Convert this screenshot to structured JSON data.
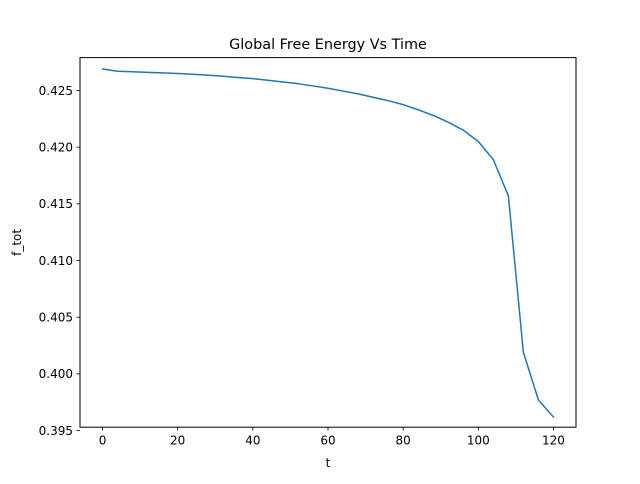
{
  "chart_data": {
    "type": "line",
    "title": "Global Free Energy Vs Time",
    "xlabel": "t",
    "ylabel": "f_tot",
    "xlim": [
      -6,
      126
    ],
    "ylim": [
      0.3953,
      0.4279
    ],
    "xticks": [
      0,
      20,
      40,
      60,
      80,
      100,
      120
    ],
    "xtick_labels": [
      "0",
      "20",
      "40",
      "60",
      "80",
      "100",
      "120"
    ],
    "yticks": [
      0.395,
      0.4,
      0.405,
      0.41,
      0.415,
      0.42,
      0.425
    ],
    "ytick_labels": [
      "0.395",
      "0.400",
      "0.405",
      "0.410",
      "0.415",
      "0.420",
      "0.425"
    ],
    "grid": false,
    "series": [
      {
        "color": "#1f77b4",
        "x": [
          0,
          4,
          8,
          12,
          16,
          20,
          24,
          28,
          32,
          36,
          40,
          44,
          48,
          52,
          56,
          60,
          64,
          68,
          72,
          76,
          80,
          84,
          88,
          92,
          96,
          100,
          104,
          108,
          112,
          116,
          120
        ],
        "y": [
          0.4269,
          0.4267,
          0.42665,
          0.4266,
          0.42655,
          0.4265,
          0.42643,
          0.42635,
          0.42625,
          0.42615,
          0.42605,
          0.4259,
          0.42575,
          0.4256,
          0.4254,
          0.4252,
          0.42495,
          0.4247,
          0.4244,
          0.4241,
          0.42375,
          0.4233,
          0.4228,
          0.4222,
          0.4215,
          0.4205,
          0.4189,
          0.4157,
          0.4019,
          0.3977,
          0.3962
        ]
      }
    ]
  }
}
